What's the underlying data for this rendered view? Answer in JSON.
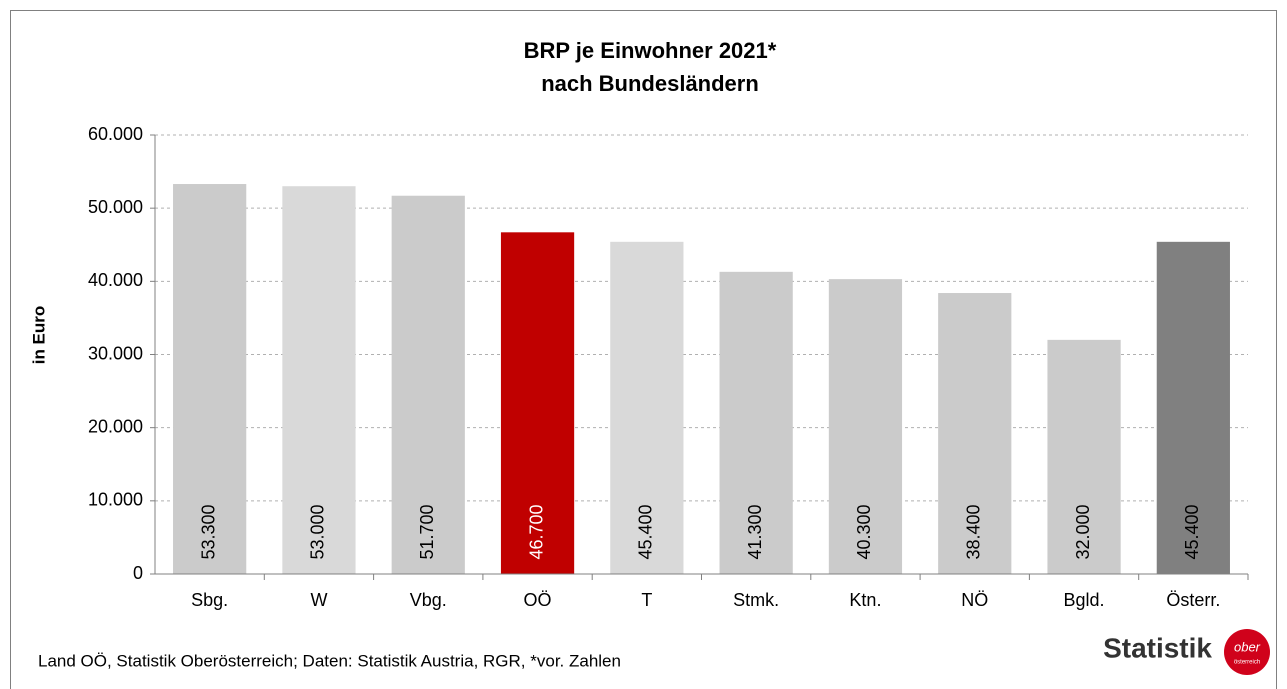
{
  "chart_data": {
    "type": "bar",
    "title": "BRP je Einwohner 2021*",
    "subtitle": "nach Bundesländern",
    "y_label": "in Euro",
    "categories": [
      "Sbg.",
      "W",
      "Vbg.",
      "OÖ",
      "T",
      "Stmk.",
      "Ktn.",
      "NÖ",
      "Bgld.",
      "Österr."
    ],
    "values": [
      53300,
      53000,
      51700,
      46700,
      45400,
      41300,
      40300,
      38400,
      32000,
      45400
    ],
    "value_labels": [
      "53.300",
      "53.000",
      "51.700",
      "46.700",
      "45.400",
      "41.300",
      "40.300",
      "38.400",
      "32.000",
      "45.400"
    ],
    "colors": [
      "#cbcbcb",
      "#d9d9d9",
      "#cbcbcb",
      "#c00000",
      "#d9d9d9",
      "#cbcbcb",
      "#cbcbcb",
      "#cbcbcb",
      "#cbcbcb",
      "#808080"
    ],
    "label_colors": [
      "#000000",
      "#000000",
      "#000000",
      "#ffffff",
      "#000000",
      "#000000",
      "#000000",
      "#000000",
      "#000000",
      "#000000"
    ],
    "ylim": [
      0,
      60000
    ],
    "yticks": [
      0,
      {
        "value": 10000,
        "label": "10.000"
      },
      {
        "value": 20000,
        "label": "20.000"
      },
      {
        "value": 30000,
        "label": "30.000"
      },
      {
        "value": 40000,
        "label": "40.000"
      },
      {
        "value": 50000,
        "label": "50.000"
      },
      {
        "value": 60000,
        "label": "60.000"
      }
    ],
    "grid": true
  },
  "footer": {
    "source": "Land OÖ, Statistik Oberösterreich; Daten: Statistik Austria, RGR, *vor. Zahlen",
    "logo": {
      "text": "Statistik",
      "badge": "ober",
      "badge_sub": "österreich"
    }
  }
}
